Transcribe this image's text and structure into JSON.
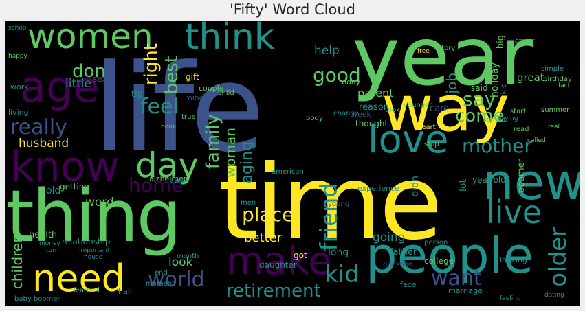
{
  "title": "'Fifty' Word Cloud",
  "colors": {
    "background": "#000000",
    "figure_bg": "#f0f0f0",
    "palette": [
      "#440154",
      "#3b528b",
      "#21918c",
      "#5ec962",
      "#fde725"
    ]
  },
  "words": {
    "life": "life",
    "year": "year",
    "time": "time",
    "thing": "thing",
    "way": "way",
    "people": "people",
    "new": "new",
    "know": "know",
    "age": "age",
    "women": "women",
    "think": "think",
    "love": "love",
    "make": "make",
    "need": "need",
    "day": "day",
    "live": "live",
    "mother": "mother",
    "world": "world",
    "retirement": "retirement",
    "feel": "feel",
    "really": "really",
    "home": "home",
    "place": "place",
    "friend": "friend",
    "older": "older",
    "kid": "kid",
    "want": "want",
    "family": "family",
    "woman": "woman",
    "aging": "aging",
    "good": "good",
    "help": "help",
    "don": "don",
    "little": "little",
    "best": "best",
    "right": "right",
    "say": "say",
    "come": "come",
    "husband": "husband",
    "word": "word",
    "better": "better",
    "going": "going",
    "children": "children",
    "look": "look",
    "job": "job",
    "parent": "parent",
    "reason": "reason",
    "great": "great",
    "holiday": "holiday",
    "year_old": "year old",
    "boomer": "boomer",
    "lot": "lot",
    "experience": "experience",
    "didn": "didn",
    "thought": "thought",
    "week": "week",
    "care": "care",
    "said": "said",
    "today": "today",
    "gift": "gift",
    "sex": "sex",
    "tip": "tip",
    "alzheimer": "alzheimer",
    "getting": "getting",
    "old": "old",
    "health": "health",
    "relationship": "relationship",
    "daughter": "daughter",
    "got": "got",
    "long": "long",
    "father": "father",
    "college": "college",
    "marriage": "marriage",
    "looking": "looking",
    "face": "face",
    "kid2": "kid",
    "story": "story",
    "big": "big",
    "couple": "couple",
    "mind": "mind",
    "work": "work",
    "living": "living",
    "child": "child",
    "body": "body",
    "change": "change",
    "younger": "younger",
    "took": "took",
    "heart": "heart",
    "stop": "stop",
    "important": "important",
    "month": "month",
    "end": "end",
    "moment": "moment",
    "hair": "hair",
    "learned": "learned",
    "question": "question",
    "tell": "tell",
    "person": "person",
    "american": "american",
    "young": "young",
    "men": "men",
    "baby_boomer": "baby boomer",
    "birthday": "birthday",
    "summer": "summer",
    "start": "start",
    "read": "read",
    "simple": "simple",
    "true": "true",
    "book": "book",
    "away": "away",
    "school": "school",
    "happy": "happy",
    "fact": "fact",
    "real": "real",
    "turn": "turn",
    "called": "called",
    "feeling": "feeling",
    "dating": "dating",
    "house": "house",
    "money": "money",
    "career": "career",
    "free": "free",
    "trying": "trying",
    "started": "started"
  }
}
